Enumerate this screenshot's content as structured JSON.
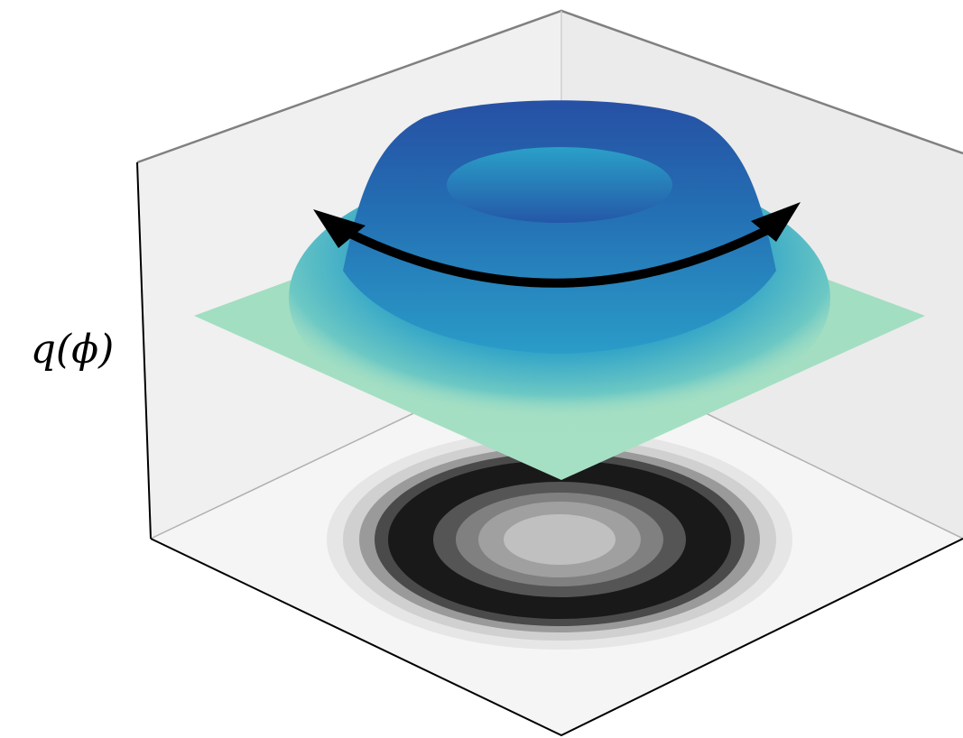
{
  "axis_label": "q(ϕ)"
}
